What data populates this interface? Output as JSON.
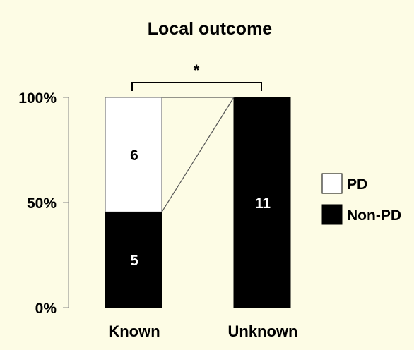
{
  "chart_data": {
    "type": "bar",
    "stacked": true,
    "title": "Local outcome",
    "categories": [
      "Known",
      "Unknown"
    ],
    "series": [
      {
        "name": "Non-PD",
        "values": [
          45.5,
          100
        ],
        "labels": [
          "5",
          "11"
        ],
        "color": "#000000"
      },
      {
        "name": "PD",
        "values": [
          54.5,
          0
        ],
        "labels": [
          "6",
          ""
        ],
        "color": "#ffffff"
      }
    ],
    "y_ticks": [
      "0%",
      "50%",
      "100%"
    ],
    "ylim": [
      0,
      100
    ],
    "significance": "*",
    "legend_position": "right",
    "grid": false
  }
}
